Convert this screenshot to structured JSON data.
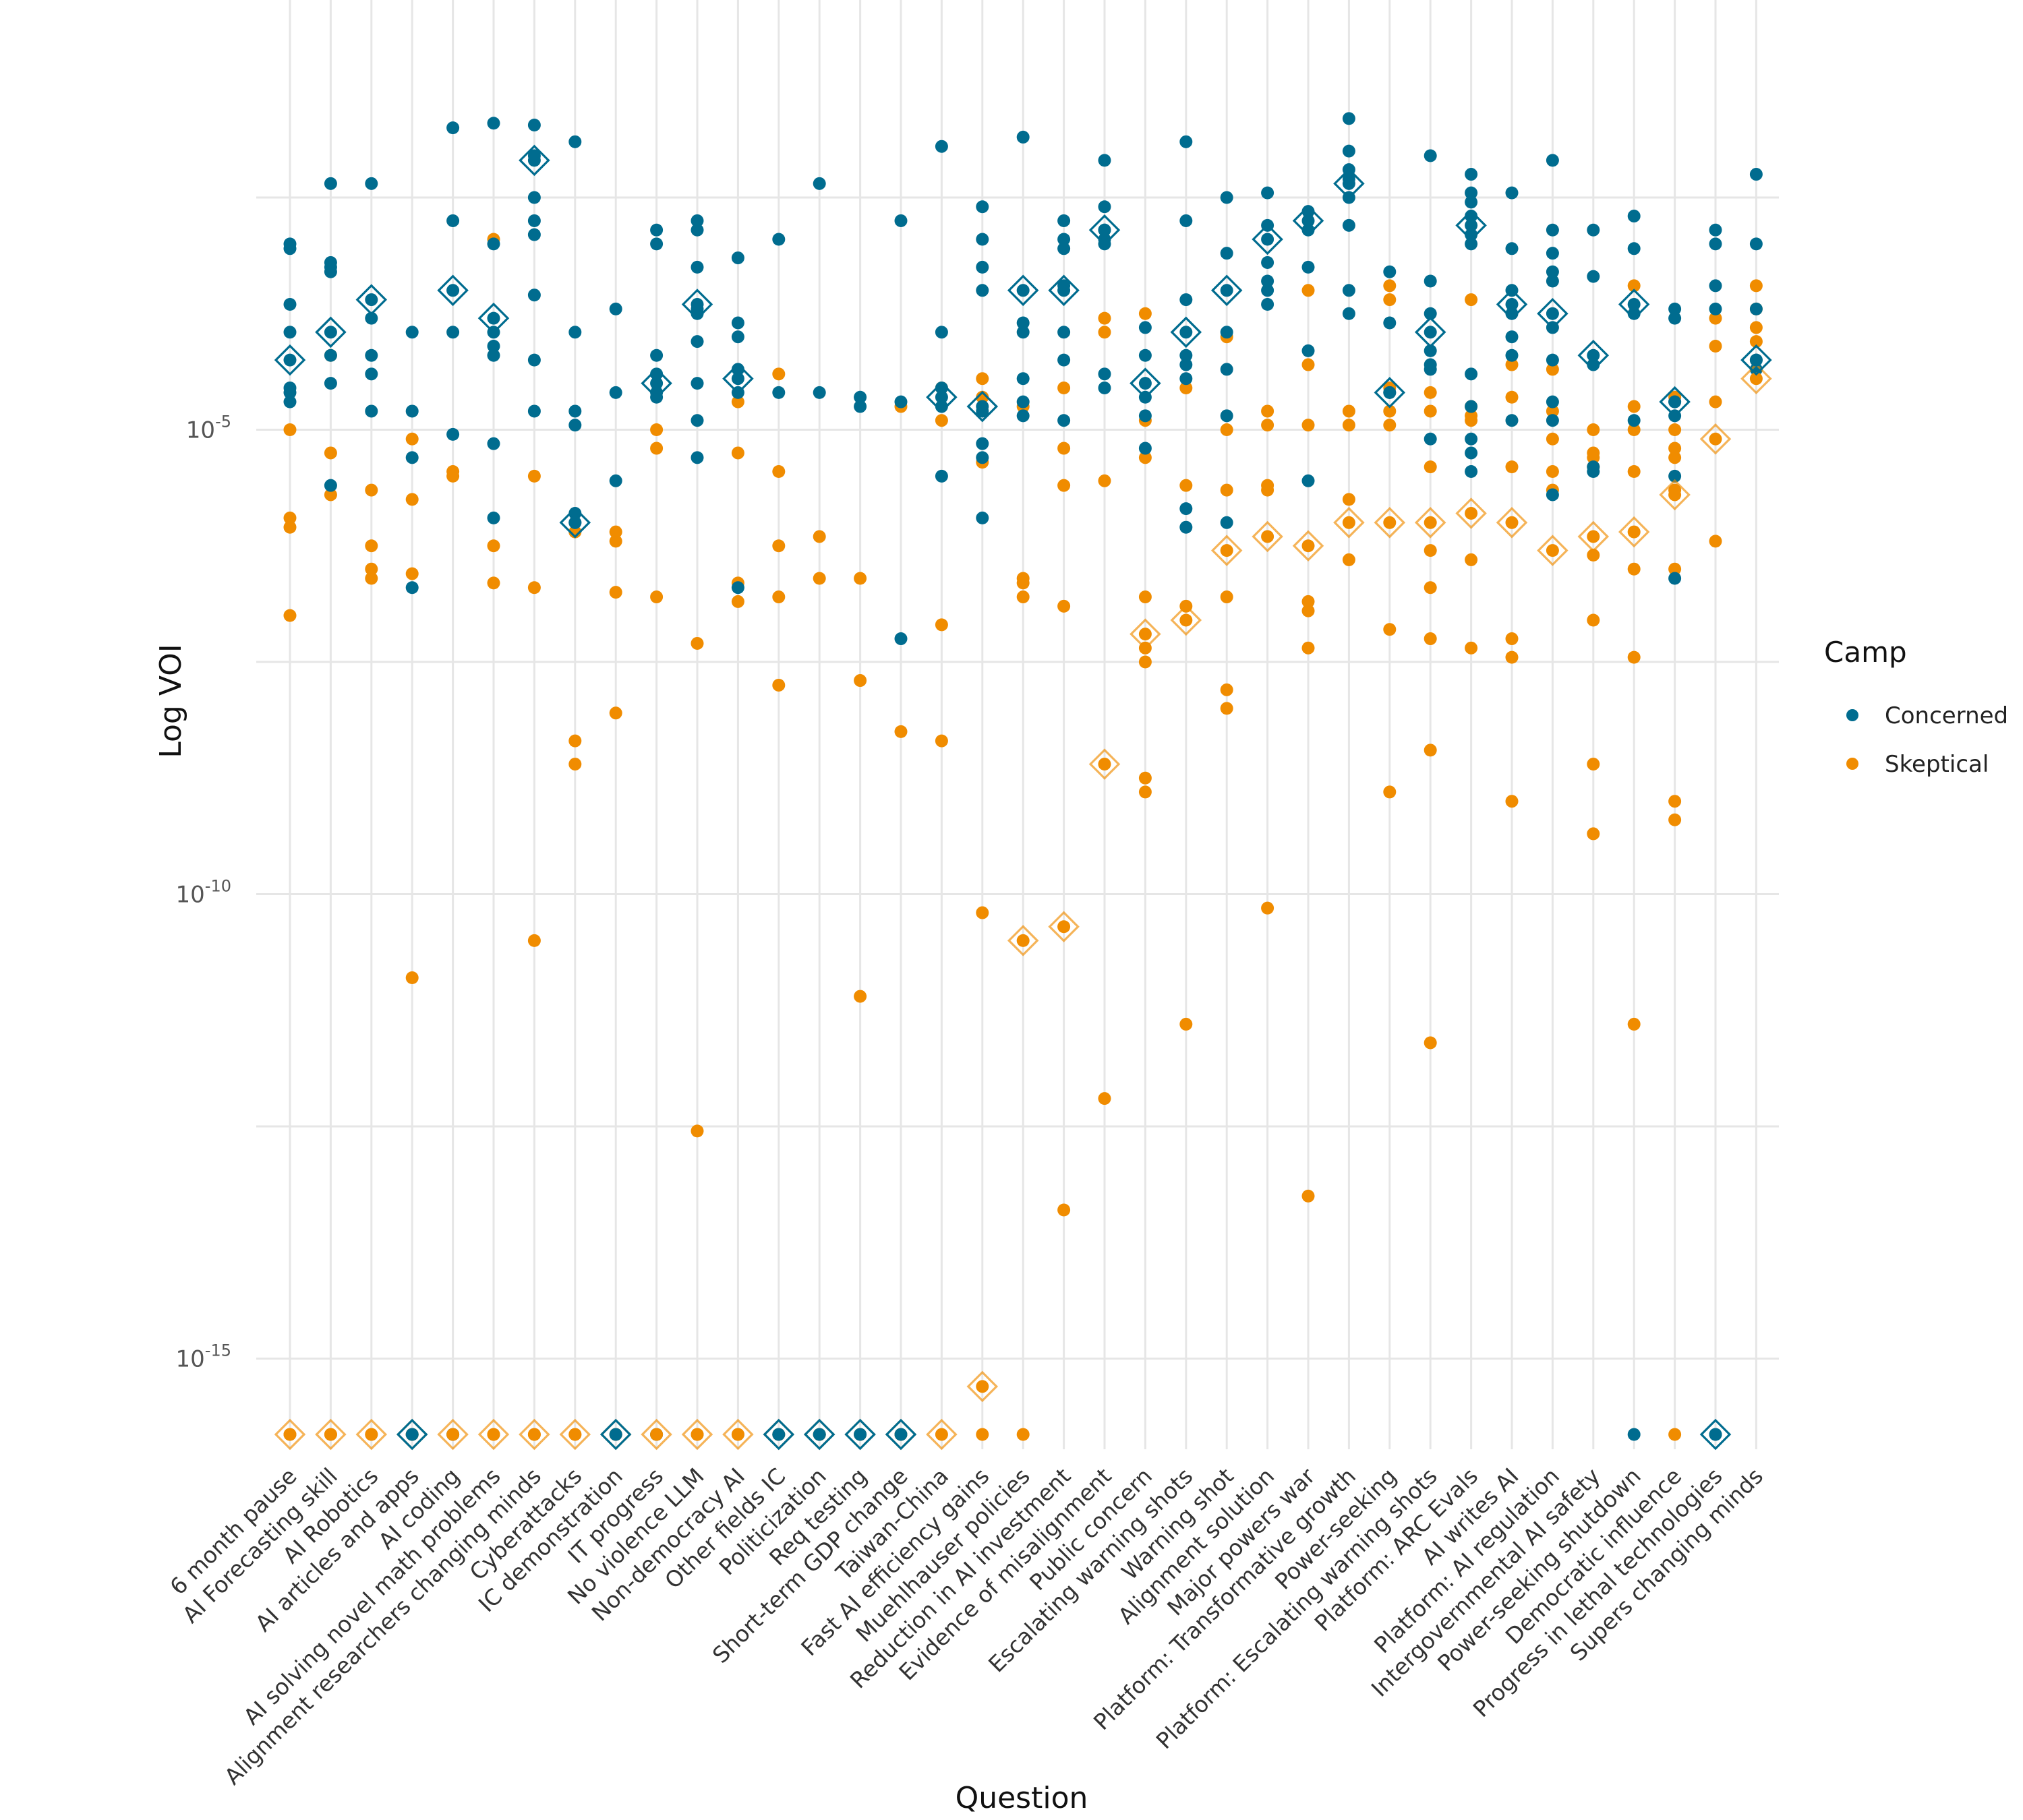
{
  "chart_data": {
    "type": "scatter",
    "title": "",
    "xlabel": "Question",
    "ylabel": "Log VOI",
    "y_scale": "log10",
    "ylim": [
      1e-16,
      0.1
    ],
    "y_ticks": [
      {
        "base": "10",
        "exp": "-5",
        "value": 1e-05
      },
      {
        "base": "10",
        "exp": "-10",
        "value": 1e-10
      },
      {
        "base": "10",
        "exp": "-15",
        "value": 1e-15
      }
    ],
    "grid": true,
    "legend": {
      "title": "Camp",
      "placement": "right"
    },
    "colors": {
      "Concerned": "#006c8f",
      "Skeptical": "#f08c00"
    },
    "marker_note": "diamond = camp median",
    "categories": [
      "6 month pause",
      "AI Forecasting skill",
      "AI Robotics",
      "AI articles and apps",
      "AI coding",
      "AI solving novel math problems",
      "Alignment researchers changing minds",
      "Cyberattacks",
      "IC demonstration",
      "IT progress",
      "No violence LLM",
      "Non-democracy AI",
      "Other fields IC",
      "Politicization",
      "Req testing",
      "Short-term GDP change",
      "Taiwan-China",
      "Fast AI efficiency gains",
      "Muehlhauser policies",
      "Reduction in AI investment",
      "Evidence of misalignment",
      "Public concern",
      "Escalating warning shots",
      "Warning shot",
      "Alignment solution",
      "Major powers war",
      "Platform: Transformative growth",
      "Power-seeking",
      "Platform: Escalating warning shots",
      "Platform: ARC Evals",
      "AI writes AI",
      "Platform: AI regulation",
      "Intergovernmental AI safety",
      "Power-seeking shutdown",
      "Democratic influence",
      "Progress in lethal technologies",
      "Supers changing minds"
    ],
    "series": [
      {
        "name": "Concerned",
        "values": [
          [
            -3.0,
            -3.05,
            -3.65,
            -3.95,
            -4.55,
            -4.6,
            -4.7
          ],
          [
            -3.2,
            -3.3,
            -4.2,
            -5.6,
            -2.35,
            -3.25,
            -4.5
          ],
          [
            -2.35,
            -3.8,
            -4.4,
            -4.8,
            -4.2
          ],
          [
            -3.95,
            -4.8,
            -5.3,
            -6.7,
            -16
          ],
          [
            -1.75,
            -2.75,
            -3.95,
            -5.05,
            -16
          ],
          [
            -1.7,
            -3.0,
            -3.95,
            -4.1,
            -4.2,
            -5.15,
            -5.95
          ],
          [
            -1.72,
            -2.05,
            -2.5,
            -2.75,
            -2.9,
            -3.55,
            -4.25,
            -4.8
          ],
          [
            -1.9,
            -3.95,
            -4.8,
            -4.95,
            -5.9,
            -6.0
          ],
          [
            -3.7,
            -4.6,
            -5.55,
            -16
          ],
          [
            -2.85,
            -3.0,
            -4.2,
            -4.6,
            -4.65,
            -4.4,
            -16
          ],
          [
            -2.75,
            -3.25,
            -2.85,
            -3.7,
            -3.75,
            -4.5,
            -4.9,
            -5.3,
            -4.05
          ],
          [
            -3.15,
            -3.85,
            -4.0,
            -4.35,
            -6.7,
            -4.6
          ],
          [
            -2.95,
            -4.6,
            -16
          ],
          [
            -2.35,
            -4.6,
            -16
          ],
          [
            -4.65,
            -4.75,
            -16
          ],
          [
            -2.75,
            -4.7,
            -7.25,
            -16
          ],
          [
            -1.95,
            -3.95,
            -4.55,
            -5.5,
            -4.75
          ],
          [
            -2.6,
            -2.95,
            -3.5,
            -3.25,
            -5.3,
            -5.15,
            -5.95,
            -4.8
          ],
          [
            -1.85,
            -3.85,
            -3.95,
            -4.45,
            -4.7,
            -4.85
          ],
          [
            -2.75,
            -2.95,
            -3.05,
            -3.45,
            -4.25,
            -4.9,
            -3.95
          ],
          [
            -2.1,
            -2.6,
            -2.85,
            -2.95,
            -3.0,
            -4.4,
            -4.55
          ],
          [
            -3.9,
            -4.2,
            -4.85,
            -5.2,
            -4.65
          ],
          [
            -1.9,
            -2.75,
            -3.6,
            -4.45,
            -4.3,
            -5.85,
            -6.05,
            -4.2
          ],
          [
            -2.5,
            -3.1,
            -4.35,
            -4.85,
            -6.0,
            -3.95
          ],
          [
            -2.45,
            -2.8,
            -3.4,
            -3.5,
            -3.65,
            -3.2
          ],
          [
            -2.65,
            -3.25,
            -4.15,
            -5.55,
            -2.85
          ],
          [
            -1.65,
            -2.0,
            -2.2,
            -2.3,
            -2.8,
            -3.5,
            -3.75,
            -2.5
          ],
          [
            -3.85,
            -3.3,
            -4.6
          ],
          [
            -2.05,
            -3.4,
            -4.15,
            -4.3,
            -5.1,
            -3.75,
            -4.35
          ],
          [
            -2.25,
            -2.45,
            -2.55,
            -2.7,
            -2.9,
            -4.4,
            -4.75,
            -5.1,
            -5.25,
            -5.45,
            -3.0
          ],
          [
            -2.45,
            -3.05,
            -3.5,
            -4.2,
            -4.9,
            -3.75,
            -4.0
          ],
          [
            -2.1,
            -2.85,
            -3.1,
            -3.3,
            -3.4,
            -3.9,
            -4.25,
            -4.7,
            -4.9,
            -5.7
          ],
          [
            -2.85,
            -3.35,
            -5.4,
            -5.45,
            -4.3
          ],
          [
            -2.7,
            -3.05,
            -4.9,
            -16,
            -3.75
          ],
          [
            -3.7,
            -3.8,
            -4.85,
            -5.5,
            -6.6,
            -4.7
          ],
          [
            -2.85,
            -3.0,
            -3.45,
            -3.7,
            -16
          ],
          [
            -2.25,
            -3.0,
            -3.7,
            -4.25,
            -4.35
          ]
        ],
        "medians": [
          -4.25,
          -3.95,
          -3.6,
          -16,
          -3.5,
          -3.8,
          -2.1,
          -6.0,
          -16,
          -4.5,
          -3.65,
          -4.45,
          -16,
          -16,
          -16,
          -16,
          -4.65,
          -4.75,
          -3.5,
          -3.5,
          -2.85,
          -4.5,
          -3.95,
          -3.5,
          -2.95,
          -2.75,
          -2.35,
          -4.6,
          -3.95,
          -2.8,
          -3.65,
          -3.75,
          -4.2,
          -3.65,
          -4.7,
          -16,
          -4.25
        ]
      },
      {
        "name": "Skeptical",
        "values": [
          [
            -5.0,
            -5.95,
            -6.05,
            -7.0,
            -16
          ],
          [
            -4.2,
            -5.25,
            -5.7,
            -16
          ],
          [
            -5.65,
            -6.25,
            -6.5,
            -6.6,
            -16
          ],
          [
            -5.1,
            -5.75,
            -6.55,
            -10.9,
            -16
          ],
          [
            -5.45,
            -5.5,
            -16
          ],
          [
            -2.95,
            -6.25,
            -6.65,
            -16
          ],
          [
            -5.5,
            -6.7,
            -10.5,
            -16
          ],
          [
            -6.1,
            -8.35,
            -8.6,
            -16
          ],
          [
            -6.1,
            -6.2,
            -6.75,
            -8.05,
            -16
          ],
          [
            -5.0,
            -5.2,
            -6.8,
            -16
          ],
          [
            -7.3,
            -12.55,
            -16
          ],
          [
            -4.7,
            -5.25,
            -6.65,
            -6.85,
            -16
          ],
          [
            -4.4,
            -5.45,
            -6.25,
            -6.8,
            -7.75
          ],
          [
            -6.15,
            -6.6,
            -16
          ],
          [
            -6.6,
            -7.7,
            -11.1
          ],
          [
            -4.75,
            -8.25
          ],
          [
            -4.55,
            -4.9,
            -7.1,
            -8.35
          ],
          [
            -4.45,
            -4.65,
            -5.35,
            -10.2,
            -16
          ],
          [
            -4.75,
            -6.6,
            -6.65,
            -6.8,
            -16
          ],
          [
            -4.55,
            -5.2,
            -5.6,
            -6.9,
            -13.4
          ],
          [
            -3.8,
            -3.95,
            -5.55,
            -12.2
          ],
          [
            -3.75,
            -4.9,
            -5.3,
            -6.8,
            -7.35,
            -7.5,
            -8.75,
            -8.9
          ],
          [
            -4.55,
            -5.6,
            -6.9,
            -11.4
          ],
          [
            -4.0,
            -5.0,
            -5.65,
            -6.8,
            -7.8,
            -8.0
          ],
          [
            -4.8,
            -4.95,
            -5.6,
            -5.65,
            -10.15
          ],
          [
            -3.5,
            -4.3,
            -4.95,
            -6.85,
            -6.95,
            -7.35,
            -13.25
          ],
          [
            -4.8,
            -4.95,
            -5.75,
            -6.4
          ],
          [
            -3.45,
            -3.6,
            -4.55,
            -4.8,
            -4.95,
            -7.15,
            -8.9
          ],
          [
            -4.6,
            -4.8,
            -5.4,
            -6.3,
            -6.7,
            -7.25,
            -8.45,
            -11.6
          ],
          [
            -3.6,
            -4.75,
            -4.85,
            -4.9,
            -6.4,
            -7.35
          ],
          [
            -4.3,
            -4.65,
            -5.4,
            -7.25,
            -7.45,
            -9.0
          ],
          [
            -4.35,
            -4.8,
            -5.1,
            -5.45,
            -5.65
          ],
          [
            -5.0,
            -5.25,
            -5.3,
            -5.4,
            -6.35,
            -7.05,
            -8.6,
            -9.35
          ],
          [
            -3.45,
            -4.75,
            -5.0,
            -5.45,
            -6.5,
            -7.45,
            -11.4
          ],
          [
            -4.65,
            -5.0,
            -5.2,
            -5.3,
            -5.65,
            -6.5,
            -9.0,
            -9.2,
            -16
          ],
          [
            -4.1,
            -4.7,
            -6.2,
            -3.8
          ],
          [
            -3.45,
            -3.7,
            -3.9,
            -4.05
          ]
        ],
        "medians": [
          -16,
          -16,
          -16,
          -16,
          -16,
          -16,
          -16,
          -16,
          -16,
          -16,
          -16,
          -16,
          -16,
          -16,
          -16,
          -16,
          -16,
          -15.3,
          -10.5,
          -10.35,
          -8.6,
          -7.2,
          -7.05,
          -6.3,
          -6.15,
          -6.25,
          -6.0,
          -6.0,
          -6.0,
          -5.9,
          -6.0,
          -6.3,
          -6.15,
          -6.1,
          -5.7,
          -5.1,
          -4.45
        ]
      }
    ]
  }
}
